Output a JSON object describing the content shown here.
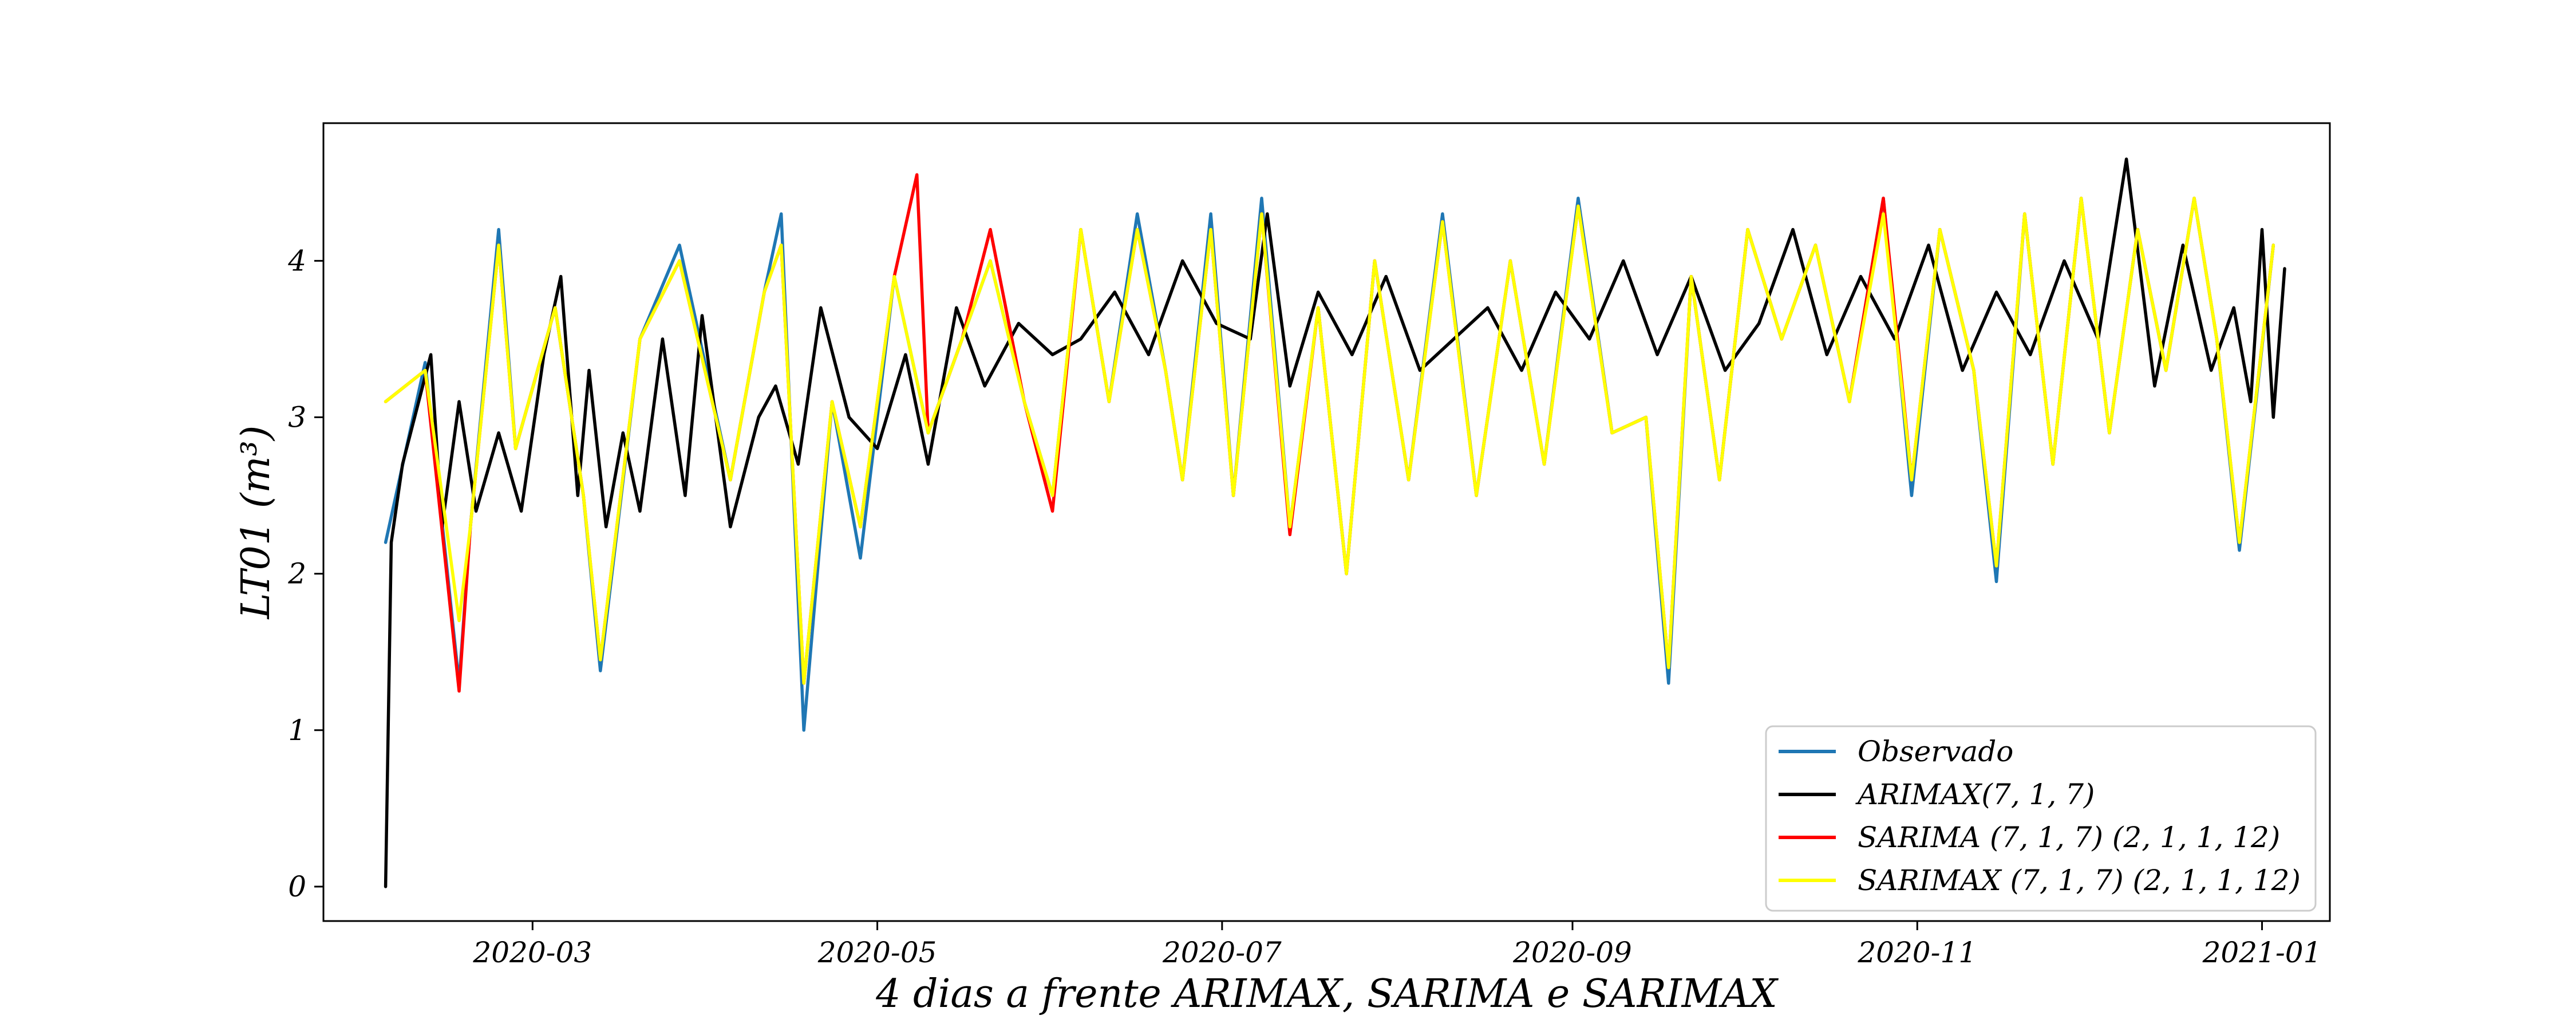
{
  "chart_data": {
    "type": "line",
    "xlabel": "4 dias a frente ARIMAX, SARIMA e SARIMAX",
    "ylabel": "LT01 (m³)",
    "xlim": [
      "2020-01-24",
      "2021-01-13"
    ],
    "ylim": [
      -0.22,
      4.88
    ],
    "x_ticks": [
      "2020-03-01",
      "2020-05-01",
      "2020-07-01",
      "2020-09-01",
      "2020-11-01",
      "2021-01-01"
    ],
    "x_tick_labels": [
      "2020-03",
      "2020-05",
      "2020-07",
      "2020-09",
      "2020-11",
      "2021-01"
    ],
    "y_ticks": [
      0,
      1,
      2,
      3,
      4
    ],
    "y_tick_labels": [
      "0",
      "1",
      "2",
      "3",
      "4"
    ],
    "grid": false,
    "legend_position": "lower-right",
    "series": [
      {
        "name": "Observado",
        "color": "#1f77b4",
        "x": [
          "2020-02-04",
          "2020-02-11",
          "2020-02-17",
          "2020-02-19",
          "2020-02-24",
          "2020-02-27",
          "2020-03-05",
          "2020-03-10",
          "2020-03-13",
          "2020-03-20",
          "2020-03-27",
          "2020-04-05",
          "2020-04-11",
          "2020-04-14",
          "2020-04-18",
          "2020-04-23",
          "2020-04-28",
          "2020-05-04",
          "2020-05-10",
          "2020-05-16",
          "2020-05-21",
          "2020-05-27",
          "2020-06-01",
          "2020-06-06",
          "2020-06-11",
          "2020-06-16",
          "2020-06-21",
          "2020-06-24",
          "2020-06-29",
          "2020-07-03",
          "2020-07-08",
          "2020-07-13",
          "2020-07-18",
          "2020-07-23",
          "2020-07-28",
          "2020-08-03",
          "2020-08-09",
          "2020-08-15",
          "2020-08-21",
          "2020-08-27",
          "2020-09-02",
          "2020-09-08",
          "2020-09-14",
          "2020-09-18",
          "2020-09-22",
          "2020-09-27",
          "2020-10-02",
          "2020-10-08",
          "2020-10-14",
          "2020-10-20",
          "2020-10-26",
          "2020-10-31",
          "2020-11-05",
          "2020-11-11",
          "2020-11-15",
          "2020-11-20",
          "2020-11-25",
          "2020-11-30",
          "2020-12-05",
          "2020-12-10",
          "2020-12-15",
          "2020-12-20",
          "2020-12-24",
          "2020-12-28",
          "2021-01-03"
        ],
        "y": [
          2.2,
          3.35,
          1.3,
          2.3,
          4.2,
          2.8,
          3.7,
          2.5,
          1.38,
          3.5,
          4.1,
          2.6,
          3.8,
          4.3,
          1.0,
          3.1,
          2.1,
          3.9,
          2.9,
          3.5,
          4.0,
          3.1,
          2.5,
          4.2,
          3.1,
          4.3,
          3.3,
          2.6,
          4.3,
          2.5,
          4.4,
          2.3,
          3.7,
          2.0,
          4.0,
          2.6,
          4.3,
          2.5,
          4.0,
          2.7,
          4.4,
          2.9,
          3.0,
          1.3,
          3.9,
          2.6,
          4.2,
          3.5,
          4.1,
          3.1,
          4.4,
          2.5,
          4.2,
          3.3,
          1.95,
          4.3,
          2.7,
          4.4,
          2.9,
          4.2,
          3.3,
          4.4,
          3.5,
          2.15,
          4.1
        ]
      },
      {
        "name": "ARIMAX(7, 1, 7)",
        "color": "#000000",
        "x": [
          "2020-02-04",
          "2020-02-05",
          "2020-02-07",
          "2020-02-12",
          "2020-02-14",
          "2020-02-17",
          "2020-02-20",
          "2020-02-24",
          "2020-02-28",
          "2020-03-03",
          "2020-03-06",
          "2020-03-09",
          "2020-03-11",
          "2020-03-14",
          "2020-03-17",
          "2020-03-20",
          "2020-03-24",
          "2020-03-28",
          "2020-03-31",
          "2020-04-05",
          "2020-04-10",
          "2020-04-13",
          "2020-04-17",
          "2020-04-21",
          "2020-04-26",
          "2020-05-01",
          "2020-05-06",
          "2020-05-10",
          "2020-05-15",
          "2020-05-20",
          "2020-05-26",
          "2020-06-01",
          "2020-06-06",
          "2020-06-12",
          "2020-06-18",
          "2020-06-24",
          "2020-06-30",
          "2020-07-06",
          "2020-07-09",
          "2020-07-13",
          "2020-07-18",
          "2020-07-24",
          "2020-07-30",
          "2020-08-05",
          "2020-08-11",
          "2020-08-17",
          "2020-08-23",
          "2020-08-29",
          "2020-09-04",
          "2020-09-10",
          "2020-09-16",
          "2020-09-22",
          "2020-09-28",
          "2020-10-04",
          "2020-10-10",
          "2020-10-16",
          "2020-10-22",
          "2020-10-28",
          "2020-11-03",
          "2020-11-09",
          "2020-11-15",
          "2020-11-21",
          "2020-11-27",
          "2020-12-03",
          "2020-12-08",
          "2020-12-13",
          "2020-12-18",
          "2020-12-23",
          "2020-12-27",
          "2020-12-30",
          "2021-01-01",
          "2021-01-03",
          "2021-01-05"
        ],
        "y": [
          0.0,
          2.2,
          2.7,
          3.4,
          2.3,
          3.1,
          2.4,
          2.9,
          2.4,
          3.4,
          3.9,
          2.5,
          3.3,
          2.3,
          2.9,
          2.4,
          3.5,
          2.5,
          3.65,
          2.3,
          3.0,
          3.2,
          2.7,
          3.7,
          3.0,
          2.8,
          3.4,
          2.7,
          3.7,
          3.2,
          3.6,
          3.4,
          3.5,
          3.8,
          3.4,
          4.0,
          3.6,
          3.5,
          4.3,
          3.2,
          3.8,
          3.4,
          3.9,
          3.3,
          3.5,
          3.7,
          3.3,
          3.8,
          3.5,
          4.0,
          3.4,
          3.9,
          3.3,
          3.6,
          4.2,
          3.4,
          3.9,
          3.5,
          4.1,
          3.3,
          3.8,
          3.4,
          4.0,
          3.5,
          4.65,
          3.2,
          4.1,
          3.3,
          3.7,
          3.1,
          4.2,
          3.0,
          3.95
        ]
      },
      {
        "name": "SARIMA (7, 1, 7) (2, 1, 1, 12)",
        "color": "#ff0000",
        "x": [
          "2020-02-04",
          "2020-02-11",
          "2020-02-17",
          "2020-02-19",
          "2020-02-24",
          "2020-02-27",
          "2020-03-05",
          "2020-03-10",
          "2020-03-13",
          "2020-03-20",
          "2020-03-27",
          "2020-04-05",
          "2020-04-11",
          "2020-04-14",
          "2020-04-18",
          "2020-04-23",
          "2020-04-28",
          "2020-05-04",
          "2020-05-08",
          "2020-05-10",
          "2020-05-16",
          "2020-05-21",
          "2020-05-27",
          "2020-06-01",
          "2020-06-06",
          "2020-06-11",
          "2020-06-16",
          "2020-06-21",
          "2020-06-24",
          "2020-06-29",
          "2020-07-03",
          "2020-07-08",
          "2020-07-13",
          "2020-07-18",
          "2020-07-23",
          "2020-07-28",
          "2020-08-03",
          "2020-08-09",
          "2020-08-15",
          "2020-08-21",
          "2020-08-27",
          "2020-09-02",
          "2020-09-08",
          "2020-09-14",
          "2020-09-18",
          "2020-09-22",
          "2020-09-27",
          "2020-10-02",
          "2020-10-08",
          "2020-10-14",
          "2020-10-20",
          "2020-10-26",
          "2020-10-31",
          "2020-11-05",
          "2020-11-11",
          "2020-11-15",
          "2020-11-20",
          "2020-11-25",
          "2020-11-30",
          "2020-12-05",
          "2020-12-10",
          "2020-12-15",
          "2020-12-20",
          "2020-12-24",
          "2020-12-28",
          "2021-01-03"
        ],
        "y": [
          3.1,
          3.3,
          1.25,
          2.3,
          4.1,
          2.8,
          3.7,
          2.5,
          1.45,
          3.5,
          4.0,
          2.6,
          3.8,
          4.1,
          1.3,
          3.1,
          2.3,
          3.9,
          4.55,
          2.9,
          3.5,
          4.2,
          3.1,
          2.4,
          4.2,
          3.1,
          4.2,
          3.3,
          2.6,
          4.2,
          2.5,
          4.3,
          2.25,
          3.7,
          2.0,
          4.0,
          2.6,
          4.25,
          2.5,
          4.0,
          2.7,
          4.35,
          2.9,
          3.0,
          1.4,
          3.9,
          2.6,
          4.2,
          3.5,
          4.1,
          3.1,
          4.4,
          2.6,
          4.2,
          3.3,
          2.05,
          4.3,
          2.7,
          4.4,
          2.9,
          4.2,
          3.3,
          4.4,
          3.5,
          2.2,
          4.1
        ]
      },
      {
        "name": "SARIMAX (7, 1, 7) (2, 1, 1, 12)",
        "color": "#ffff00",
        "x": [
          "2020-02-04",
          "2020-02-11",
          "2020-02-17",
          "2020-02-19",
          "2020-02-24",
          "2020-02-27",
          "2020-03-05",
          "2020-03-10",
          "2020-03-13",
          "2020-03-20",
          "2020-03-27",
          "2020-04-05",
          "2020-04-11",
          "2020-04-14",
          "2020-04-18",
          "2020-04-23",
          "2020-04-28",
          "2020-05-04",
          "2020-05-10",
          "2020-05-16",
          "2020-05-21",
          "2020-05-27",
          "2020-06-01",
          "2020-06-06",
          "2020-06-11",
          "2020-06-16",
          "2020-06-21",
          "2020-06-24",
          "2020-06-29",
          "2020-07-03",
          "2020-07-08",
          "2020-07-13",
          "2020-07-18",
          "2020-07-23",
          "2020-07-28",
          "2020-08-03",
          "2020-08-09",
          "2020-08-15",
          "2020-08-21",
          "2020-08-27",
          "2020-09-02",
          "2020-09-08",
          "2020-09-14",
          "2020-09-18",
          "2020-09-22",
          "2020-09-27",
          "2020-10-02",
          "2020-10-08",
          "2020-10-14",
          "2020-10-20",
          "2020-10-26",
          "2020-10-31",
          "2020-11-05",
          "2020-11-11",
          "2020-11-15",
          "2020-11-20",
          "2020-11-25",
          "2020-11-30",
          "2020-12-05",
          "2020-12-10",
          "2020-12-15",
          "2020-12-20",
          "2020-12-24",
          "2020-12-28",
          "2021-01-03"
        ],
        "y": [
          3.1,
          3.3,
          1.7,
          2.3,
          4.1,
          2.8,
          3.7,
          2.5,
          1.45,
          3.5,
          4.0,
          2.6,
          3.8,
          4.1,
          1.3,
          3.1,
          2.3,
          3.9,
          2.9,
          3.5,
          4.0,
          3.1,
          2.5,
          4.2,
          3.1,
          4.2,
          3.3,
          2.6,
          4.2,
          2.5,
          4.3,
          2.3,
          3.7,
          2.0,
          4.0,
          2.6,
          4.25,
          2.5,
          4.0,
          2.7,
          4.35,
          2.9,
          3.0,
          1.4,
          3.9,
          2.6,
          4.2,
          3.5,
          4.1,
          3.1,
          4.3,
          2.6,
          4.2,
          3.3,
          2.05,
          4.3,
          2.7,
          4.4,
          2.9,
          4.2,
          3.3,
          4.4,
          3.5,
          2.2,
          4.1
        ]
      }
    ]
  }
}
